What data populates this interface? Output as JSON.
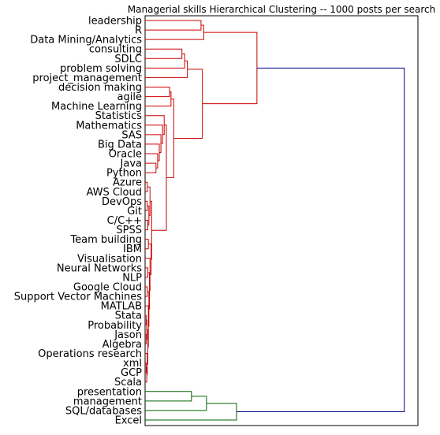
{
  "chart_data": {
    "type": "dendrogram",
    "title": "Managerial skills Hierarchical Clustering -- 1000 posts per search",
    "orientation": "right",
    "xlabel": "",
    "ylabel": "",
    "xlim": [
      0,
      1.0
    ],
    "grid": false,
    "colors": {
      "cluster_red": "#cc0000",
      "cluster_green": "#006400",
      "root_blue": "#00008b"
    },
    "leaves": [
      "leadership",
      "R",
      "Data Mining/Analytics",
      "consulting",
      "SDLC",
      "problem solving",
      "project_management",
      "decision making",
      "agile",
      "Machine Learning",
      "Statistics",
      "Mathematics",
      "SAS",
      "Big Data",
      "Oracle",
      "Java",
      "Python",
      "Azure",
      "AWS Cloud",
      "DevOps",
      "Git",
      "C/C++",
      "SPSS",
      "Team building",
      "IBM",
      "Visualisation",
      "Neural Networks",
      "NLP",
      "Google Cloud",
      "Support Vector Machines",
      "MATLAB",
      "Stata",
      "Probability",
      "Jason",
      "Algebra",
      "Operations research",
      "xml",
      "GCP",
      "Scala",
      "presentation",
      "management",
      "SQL/databases",
      "Excel"
    ],
    "merges": [
      {
        "id": "c0",
        "children": [
          "Stata",
          "Probability"
        ],
        "height": 0.004,
        "color": "cluster_red"
      },
      {
        "id": "c1",
        "children": [
          "Jason",
          "Algebra"
        ],
        "height": 0.004,
        "color": "cluster_red"
      },
      {
        "id": "c2",
        "children": [
          "c0",
          "c1"
        ],
        "height": 0.006,
        "color": "cluster_red"
      },
      {
        "id": "c3",
        "children": [
          "xml",
          "GCP"
        ],
        "height": 0.004,
        "color": "cluster_red"
      },
      {
        "id": "c4",
        "children": [
          "c3",
          "Scala"
        ],
        "height": 0.006,
        "color": "cluster_red"
      },
      {
        "id": "c5",
        "children": [
          "Operations research",
          "c4"
        ],
        "height": 0.008,
        "color": "cluster_red"
      },
      {
        "id": "c6",
        "children": [
          "c2",
          "c5"
        ],
        "height": 0.01,
        "color": "cluster_red"
      },
      {
        "id": "c7",
        "children": [
          "MATLAB",
          "c6"
        ],
        "height": 0.012,
        "color": "cluster_red"
      },
      {
        "id": "c8",
        "children": [
          "Google Cloud",
          "Support Vector Machines"
        ],
        "height": 0.008,
        "color": "cluster_red"
      },
      {
        "id": "c9",
        "children": [
          "c8",
          "c7"
        ],
        "height": 0.014,
        "color": "cluster_red"
      },
      {
        "id": "c10",
        "children": [
          "Neural Networks",
          "NLP"
        ],
        "height": 0.01,
        "color": "cluster_red"
      },
      {
        "id": "c11",
        "children": [
          "c10",
          "c9"
        ],
        "height": 0.016,
        "color": "cluster_red"
      },
      {
        "id": "c12",
        "children": [
          "Visualisation",
          "c11"
        ],
        "height": 0.018,
        "color": "cluster_red"
      },
      {
        "id": "c13",
        "children": [
          "Team building",
          "IBM"
        ],
        "height": 0.012,
        "color": "cluster_red"
      },
      {
        "id": "c14",
        "children": [
          "c13",
          "c12"
        ],
        "height": 0.022,
        "color": "cluster_red"
      },
      {
        "id": "c15",
        "children": [
          "Azure",
          "AWS Cloud"
        ],
        "height": 0.008,
        "color": "cluster_red"
      },
      {
        "id": "c16",
        "children": [
          "DevOps",
          "Git"
        ],
        "height": 0.008,
        "color": "cluster_red"
      },
      {
        "id": "c17",
        "children": [
          "C/C++",
          "SPSS"
        ],
        "height": 0.01,
        "color": "cluster_red"
      },
      {
        "id": "c18",
        "children": [
          "c16",
          "c17"
        ],
        "height": 0.014,
        "color": "cluster_red"
      },
      {
        "id": "c19",
        "children": [
          "c15",
          "c18"
        ],
        "height": 0.018,
        "color": "cluster_red"
      },
      {
        "id": "c20",
        "children": [
          "c19",
          "c14"
        ],
        "height": 0.024,
        "color": "cluster_red"
      },
      {
        "id": "c21",
        "children": [
          "Java",
          "Python"
        ],
        "height": 0.04,
        "color": "cluster_red"
      },
      {
        "id": "c22",
        "children": [
          "Oracle",
          "c21"
        ],
        "height": 0.046,
        "color": "cluster_red"
      },
      {
        "id": "c23",
        "children": [
          "Big Data",
          "c22"
        ],
        "height": 0.052,
        "color": "cluster_red"
      },
      {
        "id": "c24",
        "children": [
          "SAS",
          "c23"
        ],
        "height": 0.058,
        "color": "cluster_red"
      },
      {
        "id": "c25",
        "children": [
          "Mathematics",
          "c24"
        ],
        "height": 0.064,
        "color": "cluster_red"
      },
      {
        "id": "c26",
        "children": [
          "Statistics",
          "c25"
        ],
        "height": 0.07,
        "color": "cluster_red"
      },
      {
        "id": "c27",
        "children": [
          "c26",
          "c20"
        ],
        "height": 0.078,
        "color": "cluster_red"
      },
      {
        "id": "c28",
        "children": [
          "decision making",
          "agile"
        ],
        "height": 0.09,
        "color": "cluster_red"
      },
      {
        "id": "c29",
        "children": [
          "c28",
          "Machine Learning"
        ],
        "height": 0.095,
        "color": "cluster_red"
      },
      {
        "id": "c30",
        "children": [
          "c29",
          "c27"
        ],
        "height": 0.105,
        "color": "cluster_red"
      },
      {
        "id": "c31",
        "children": [
          "consulting",
          "SDLC"
        ],
        "height": 0.135,
        "color": "cluster_red"
      },
      {
        "id": "c32",
        "children": [
          "c31",
          "problem solving"
        ],
        "height": 0.145,
        "color": "cluster_red"
      },
      {
        "id": "c33",
        "children": [
          "c32",
          "project_management"
        ],
        "height": 0.155,
        "color": "cluster_red"
      },
      {
        "id": "c34",
        "children": [
          "c33",
          "c30"
        ],
        "height": 0.21,
        "color": "cluster_red"
      },
      {
        "id": "c35",
        "children": [
          "leadership",
          "R"
        ],
        "height": 0.205,
        "color": "cluster_red"
      },
      {
        "id": "c36",
        "children": [
          "c35",
          "Data Mining/Analytics"
        ],
        "height": 0.215,
        "color": "cluster_red"
      },
      {
        "id": "c37",
        "children": [
          "c36",
          "c34"
        ],
        "height": 0.41,
        "color": "cluster_red"
      },
      {
        "id": "c38",
        "children": [
          "presentation",
          "management"
        ],
        "height": 0.17,
        "color": "cluster_green"
      },
      {
        "id": "c39",
        "children": [
          "c38",
          "SQL/databases"
        ],
        "height": 0.225,
        "color": "cluster_green"
      },
      {
        "id": "c40",
        "children": [
          "c39",
          "Excel"
        ],
        "height": 0.335,
        "color": "cluster_green"
      },
      {
        "id": "c41",
        "children": [
          "c37",
          "c40"
        ],
        "height": 0.95,
        "color": "root_blue"
      }
    ]
  }
}
